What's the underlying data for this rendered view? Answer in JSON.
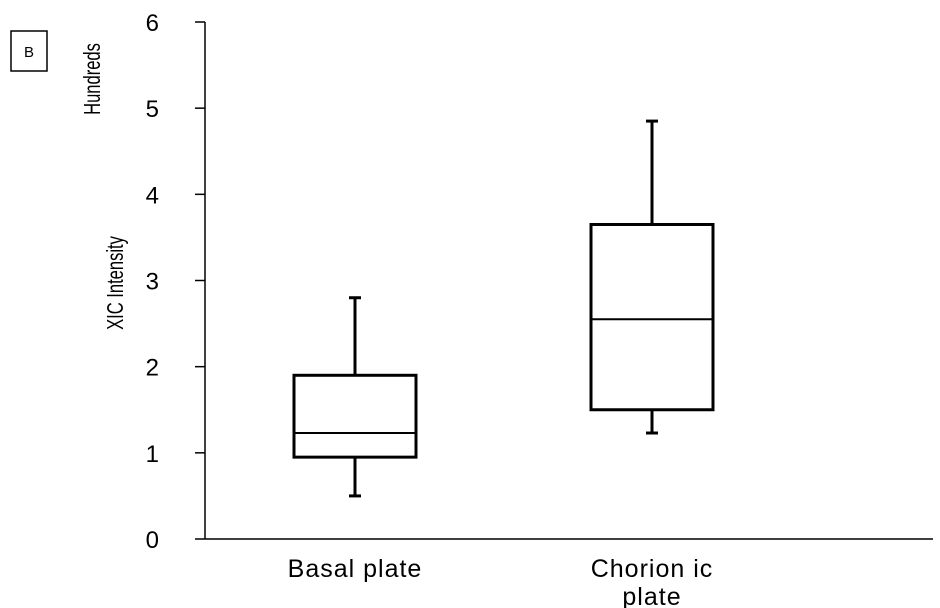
{
  "panel_label": "B",
  "chart_data": {
    "type": "box",
    "ylabel": "XIC Intensity",
    "yunit_label": "Hundreds",
    "ylim": [
      0,
      6
    ],
    "yticks": [
      0,
      1,
      2,
      3,
      4,
      5,
      6
    ],
    "categories": [
      {
        "lines": [
          "Basal plate"
        ]
      },
      {
        "lines": [
          "Chorion ic",
          "plate"
        ]
      }
    ],
    "boxes": [
      {
        "min": 0.5,
        "q1": 0.95,
        "median": 1.23,
        "q3": 1.9,
        "max": 2.8
      },
      {
        "min": 1.23,
        "q1": 1.5,
        "median": 2.55,
        "q3": 3.65,
        "max": 4.85
      }
    ],
    "grid": false,
    "legend": "none"
  }
}
